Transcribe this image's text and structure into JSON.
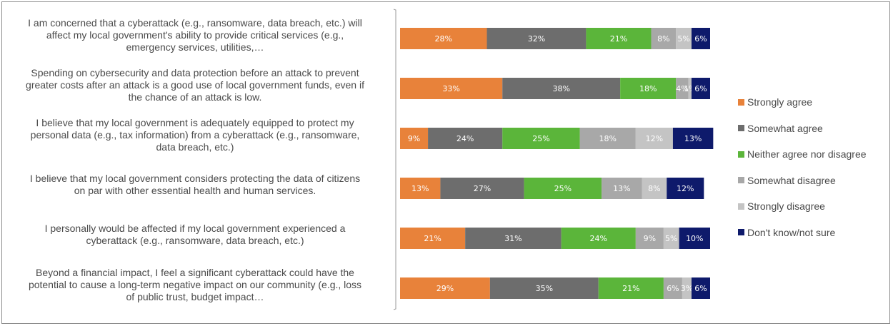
{
  "chart_data": {
    "type": "bar",
    "orientation": "horizontal",
    "stacked": true,
    "xlim": [
      0,
      100
    ],
    "grid": false,
    "legend_position": "right",
    "categories": [
      "I am concerned that a cyberattack (e.g., ransomware, data breach, etc.) will affect my local government's ability to provide critical services (e.g., emergency services, utilities,…",
      "Spending on cybersecurity and data protection before an attack to prevent greater costs after an attack is a good use of local government funds, even if the chance of an attack is low.",
      "I believe that my local government is adequately equipped to protect my personal data (e.g., tax information) from a cyberattack (e.g., ransomware, data breach, etc.)",
      "I believe that my local government considers protecting the data of citizens on par with other essential health and human services.",
      "I personally would be affected if my local government experienced a cyberattack (e.g., ransomware, data breach, etc.)",
      "Beyond a financial impact, I feel a significant cyberattack could have the potential to cause a long-term negative impact on our community (e.g., loss of public trust, budget impact…"
    ],
    "series": [
      {
        "name": "Strongly agree",
        "color": "#e8823a",
        "values": [
          28,
          33,
          9,
          13,
          21,
          29
        ]
      },
      {
        "name": "Somewhat agree",
        "color": "#6d6d6d",
        "values": [
          32,
          38,
          24,
          27,
          31,
          35
        ]
      },
      {
        "name": "Neither agree nor disagree",
        "color": "#5bb53a",
        "values": [
          21,
          18,
          25,
          25,
          24,
          21
        ]
      },
      {
        "name": "Somewhat disagree",
        "color": "#a8a8a8",
        "values": [
          8,
          4,
          18,
          13,
          9,
          6
        ]
      },
      {
        "name": "Strongly disagree",
        "color": "#c4c4c4",
        "values": [
          5,
          1,
          12,
          8,
          5,
          3
        ]
      },
      {
        "name": "Don't know/not sure",
        "color": "#0e1a6b",
        "values": [
          6,
          6,
          13,
          12,
          10,
          6
        ]
      }
    ],
    "data_labels": [
      [
        "28%",
        "32%",
        "21%",
        "8%",
        "5%",
        "6%"
      ],
      [
        "33%",
        "38%",
        "18%",
        "4%",
        "1%",
        "6%"
      ],
      [
        "9%",
        "24%",
        "25%",
        "18%",
        "12%",
        "13%"
      ],
      [
        "13%",
        "27%",
        "25%",
        "13%",
        "8%",
        "12%"
      ],
      [
        "21%",
        "31%",
        "24%",
        "9%",
        "5%",
        "10%"
      ],
      [
        "29%",
        "35%",
        "21%",
        "6%",
        "3%",
        "6%"
      ]
    ]
  }
}
